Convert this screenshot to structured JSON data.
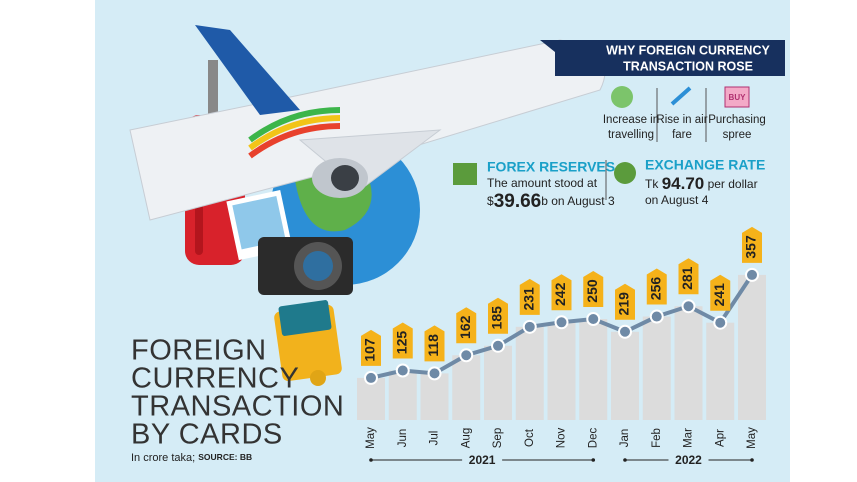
{
  "chart_data": {
    "type": "line",
    "title_lines": [
      "FOREIGN",
      "CURRENCY",
      "TRANSACTION",
      "BY CARDS"
    ],
    "subtitle": "In crore taka;",
    "source": "SOURCE: BB",
    "categories": [
      "May",
      "Jun",
      "Jul",
      "Aug",
      "Sep",
      "Oct",
      "Nov",
      "Dec",
      "Jan",
      "Feb",
      "Mar",
      "Apr",
      "May"
    ],
    "values": [
      107,
      125,
      118,
      162,
      185,
      231,
      242,
      250,
      219,
      256,
      281,
      241,
      357
    ],
    "years": [
      {
        "label": "2021",
        "from": 0,
        "to": 7
      },
      {
        "label": "2022",
        "from": 8,
        "to": 12
      }
    ],
    "color": "#6f8aa6",
    "label_color": "#f5b21a",
    "bar_color": "#dcdcdc"
  },
  "why_panel": {
    "title_lines": [
      "WHY FOREIGN CURRENCY",
      "TRANSACTION ROSE"
    ],
    "reasons": [
      [
        "Increase in",
        "travelling"
      ],
      [
        "Rise in air",
        "fare"
      ],
      [
        "Purchasing",
        "spree"
      ]
    ],
    "icon_text": "BUY"
  },
  "forex": {
    "heading": "FOREX RESERVES",
    "line1": "The amount stood at",
    "prefix": "$",
    "amount": "39.66",
    "suffix": "b on August 3"
  },
  "exchange": {
    "heading": "EXCHANGE RATE",
    "prefix": "Tk",
    "amount": "94.70",
    "suffix": "per dollar",
    "line2": "on August 4"
  }
}
